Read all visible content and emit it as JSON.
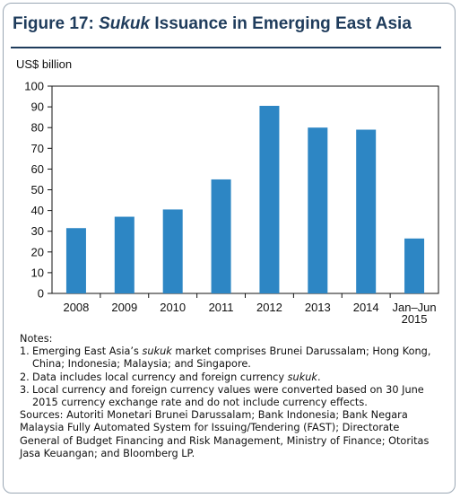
{
  "title": {
    "prefix": "Figure 17: ",
    "italic": "Sukuk",
    "rest": " Issuance in Emerging East Asia"
  },
  "chart_data": {
    "type": "bar",
    "title": "Figure 17: Sukuk Issuance in Emerging East Asia",
    "ylabel": "US$ billion",
    "xlabel": "",
    "categories": [
      "2008",
      "2009",
      "2010",
      "2011",
      "2012",
      "2013",
      "2014",
      "Jan–Jun 2015"
    ],
    "category_lines": [
      [
        "2008"
      ],
      [
        "2009"
      ],
      [
        "2010"
      ],
      [
        "2011"
      ],
      [
        "2012"
      ],
      [
        "2013"
      ],
      [
        "2014"
      ],
      [
        "Jan–Jun",
        "2015"
      ]
    ],
    "values": [
      31.5,
      37,
      40.5,
      55,
      90.5,
      80,
      79,
      26.5
    ],
    "ylim": [
      0,
      100
    ],
    "yticks": [
      0,
      10,
      20,
      30,
      40,
      50,
      60,
      70,
      80,
      90,
      100
    ],
    "grid": false,
    "legend": "none",
    "bar_color": "#2d86c4"
  },
  "notes": {
    "heading": "Notes:",
    "items": [
      {
        "num": "1.",
        "a": "Emerging East Asia’s ",
        "i": "sukuk",
        "b": " market comprises Brunei Darussalam; Hong Kong, China; Indonesia; Malaysia; and Singapore."
      },
      {
        "num": "2.",
        "a": "Data includes local currency and foreign currency ",
        "i": "sukuk",
        "b": "."
      },
      {
        "num": "3.",
        "a": "Local currency and foreign currency values were converted based on 30 June 2015 currency exchange rate and do not include currency effects.",
        "i": "",
        "b": ""
      }
    ],
    "sources": "Sources: Autoriti Monetari Brunei Darussalam; Bank Indonesia; Bank Negara Malaysia Fully Automated System for Issuing/Tendering (FAST); Directorate General of Budget Financing and Risk Management, Ministry of Finance; Otoritas Jasa Keuangan; and Bloomberg LP."
  }
}
